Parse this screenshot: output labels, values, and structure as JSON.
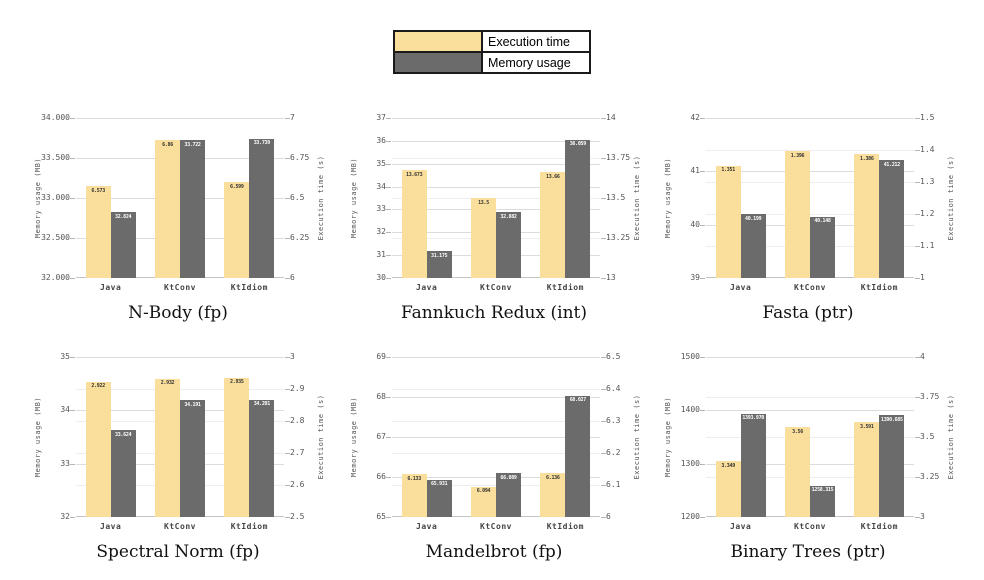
{
  "colors": {
    "exec": "#FADE9B",
    "mem": "#6B6B6B",
    "grid_major": "#dcdcdc",
    "grid_minor": "#eeeeee"
  },
  "legend": {
    "items": [
      {
        "label": "Execution time",
        "color": "#FADE9B"
      },
      {
        "label": "Memory usage",
        "color": "#6B6B6B"
      }
    ]
  },
  "chart_data": [
    {
      "type": "bar",
      "title": "N-Body (fp)",
      "categories": [
        "Java",
        "KtConv",
        "KtIdiom"
      ],
      "left_axis": {
        "label": "Memory usage (MB)",
        "min": 32,
        "max": 34,
        "ticks": [
          {
            "label": "34.000",
            "value": 34
          },
          {
            "label": "33.500",
            "value": 33.5
          },
          {
            "label": "33.000",
            "value": 33
          },
          {
            "label": "32.500",
            "value": 32.5
          },
          {
            "label": "32.000",
            "value": 32
          }
        ]
      },
      "right_axis": {
        "label": "Execution time (s)",
        "min": 6,
        "max": 7,
        "ticks": [
          {
            "label": "7",
            "value": 7
          },
          {
            "label": "6.75",
            "value": 6.75
          },
          {
            "label": "6.5",
            "value": 6.5
          },
          {
            "label": "6.25",
            "value": 6.25
          },
          {
            "label": "6",
            "value": 6
          }
        ]
      },
      "series": [
        {
          "name": "Execution time",
          "axis": "right",
          "values": [
            6.573,
            6.86,
            6.599
          ],
          "labels": [
            "6.573",
            "6.86",
            "6.599"
          ]
        },
        {
          "name": "Memory usage",
          "axis": "left",
          "values": [
            32.824,
            33.722,
            33.739
          ],
          "labels": [
            "32.824",
            "33.722",
            "33.739"
          ]
        }
      ]
    },
    {
      "type": "bar",
      "title": "Fannkuch Redux (int)",
      "categories": [
        "Java",
        "KtConv",
        "KtIdiom"
      ],
      "left_axis": {
        "label": "Memory usage (MB)",
        "min": 30,
        "max": 37,
        "ticks": [
          {
            "label": "37",
            "value": 37
          },
          {
            "label": "36",
            "value": 36
          },
          {
            "label": "35",
            "value": 35
          },
          {
            "label": "34",
            "value": 34
          },
          {
            "label": "33",
            "value": 33
          },
          {
            "label": "32",
            "value": 32
          },
          {
            "label": "31",
            "value": 31
          },
          {
            "label": "30",
            "value": 30
          }
        ]
      },
      "right_axis": {
        "label": "Execution time (s)",
        "min": 13,
        "max": 14,
        "ticks": [
          {
            "label": "14",
            "value": 14
          },
          {
            "label": "13.75",
            "value": 13.75
          },
          {
            "label": "13.5",
            "value": 13.5
          },
          {
            "label": "13.25",
            "value": 13.25
          },
          {
            "label": "13",
            "value": 13
          }
        ]
      },
      "series": [
        {
          "name": "Execution time",
          "axis": "right",
          "values": [
            13.673,
            13.5,
            13.66
          ],
          "labels": [
            "13.673",
            "13.5",
            "13.66"
          ]
        },
        {
          "name": "Memory usage",
          "axis": "left",
          "values": [
            31.175,
            32.882,
            36.059
          ],
          "labels": [
            "31.175",
            "32.882",
            "36.059"
          ]
        }
      ]
    },
    {
      "type": "bar",
      "title": "Fasta (ptr)",
      "categories": [
        "Java",
        "KtConv",
        "KtIdiom"
      ],
      "left_axis": {
        "label": "Memory usage (MB)",
        "min": 39,
        "max": 42,
        "ticks": [
          {
            "label": "42",
            "value": 42
          },
          {
            "label": "41",
            "value": 41
          },
          {
            "label": "40",
            "value": 40
          },
          {
            "label": "39",
            "value": 39
          }
        ]
      },
      "right_axis": {
        "label": "Execution time (s)",
        "min": 1,
        "max": 1.5,
        "ticks": [
          {
            "label": "1.5",
            "value": 1.5
          },
          {
            "label": "1.4",
            "value": 1.4
          },
          {
            "label": "1.3",
            "value": 1.3
          },
          {
            "label": "1.2",
            "value": 1.2
          },
          {
            "label": "1.1",
            "value": 1.1
          },
          {
            "label": "1",
            "value": 1
          }
        ]
      },
      "series": [
        {
          "name": "Execution time",
          "axis": "right",
          "values": [
            1.351,
            1.396,
            1.386
          ],
          "labels": [
            "1.351",
            "1.396",
            "1.386"
          ]
        },
        {
          "name": "Memory usage",
          "axis": "left",
          "values": [
            40.199,
            40.148,
            41.212
          ],
          "labels": [
            "40.199",
            "40.148",
            "41.212"
          ]
        }
      ]
    },
    {
      "type": "bar",
      "title": "Spectral Norm (fp)",
      "categories": [
        "Java",
        "KtConv",
        "KtIdiom"
      ],
      "left_axis": {
        "label": "Memory usage (MB)",
        "min": 32,
        "max": 35,
        "ticks": [
          {
            "label": "35",
            "value": 35
          },
          {
            "label": "34",
            "value": 34
          },
          {
            "label": "33",
            "value": 33
          },
          {
            "label": "32",
            "value": 32
          }
        ]
      },
      "right_axis": {
        "label": "Execution time (s)",
        "min": 2.5,
        "max": 3,
        "ticks": [
          {
            "label": "3",
            "value": 3
          },
          {
            "label": "2.9",
            "value": 2.9
          },
          {
            "label": "2.8",
            "value": 2.8
          },
          {
            "label": "2.7",
            "value": 2.7
          },
          {
            "label": "2.6",
            "value": 2.6
          },
          {
            "label": "2.5",
            "value": 2.5
          }
        ]
      },
      "series": [
        {
          "name": "Execution time",
          "axis": "right",
          "values": [
            2.922,
            2.932,
            2.935
          ],
          "labels": [
            "2.922",
            "2.932",
            "2.935"
          ]
        },
        {
          "name": "Memory usage",
          "axis": "left",
          "values": [
            33.624,
            34.191,
            34.201
          ],
          "labels": [
            "33.624",
            "34.191",
            "34.201"
          ]
        }
      ]
    },
    {
      "type": "bar",
      "title": "Mandelbrot (fp)",
      "categories": [
        "Java",
        "KtConv",
        "KtIdiom"
      ],
      "left_axis": {
        "label": "Memory usage (MB)",
        "min": 65,
        "max": 69,
        "ticks": [
          {
            "label": "69",
            "value": 69
          },
          {
            "label": "68",
            "value": 68
          },
          {
            "label": "67",
            "value": 67
          },
          {
            "label": "66",
            "value": 66
          },
          {
            "label": "65",
            "value": 65
          }
        ]
      },
      "right_axis": {
        "label": "Execution time (s)",
        "min": 6,
        "max": 6.5,
        "ticks": [
          {
            "label": "6.5",
            "value": 6.5
          },
          {
            "label": "6.4",
            "value": 6.4
          },
          {
            "label": "6.3",
            "value": 6.3
          },
          {
            "label": "6.2",
            "value": 6.2
          },
          {
            "label": "6.1",
            "value": 6.1
          },
          {
            "label": "6",
            "value": 6
          }
        ]
      },
      "series": [
        {
          "name": "Execution time",
          "axis": "right",
          "values": [
            6.133,
            6.094,
            6.136
          ],
          "labels": [
            "6.133",
            "6.094",
            "6.136"
          ]
        },
        {
          "name": "Memory usage",
          "axis": "left",
          "values": [
            65.931,
            66.089,
            68.027
          ],
          "labels": [
            "65.931",
            "66.089",
            "68.027"
          ]
        }
      ]
    },
    {
      "type": "bar",
      "title": "Binary Trees (ptr)",
      "categories": [
        "Java",
        "KtConv",
        "KtIdiom"
      ],
      "left_axis": {
        "label": "Memory usage (MB)",
        "min": 1200,
        "max": 1500,
        "ticks": [
          {
            "label": "1500",
            "value": 1500
          },
          {
            "label": "1400",
            "value": 1400
          },
          {
            "label": "1300",
            "value": 1300
          },
          {
            "label": "1200",
            "value": 1200
          }
        ]
      },
      "right_axis": {
        "label": "Execution time (s)",
        "min": 3,
        "max": 4,
        "ticks": [
          {
            "label": "4",
            "value": 4
          },
          {
            "label": "3.75",
            "value": 3.75
          },
          {
            "label": "3.5",
            "value": 3.5
          },
          {
            "label": "3.25",
            "value": 3.25
          },
          {
            "label": "3",
            "value": 3
          }
        ]
      },
      "series": [
        {
          "name": "Execution time",
          "axis": "right",
          "values": [
            3.349,
            3.56,
            3.591
          ],
          "labels": [
            "3.349",
            "3.56",
            "3.591"
          ]
        },
        {
          "name": "Memory usage",
          "axis": "left",
          "values": [
            1393.97,
            1258.315,
            1390.685
          ],
          "labels": [
            "1393.970",
            "1258.315",
            "1390.685"
          ]
        }
      ]
    }
  ]
}
